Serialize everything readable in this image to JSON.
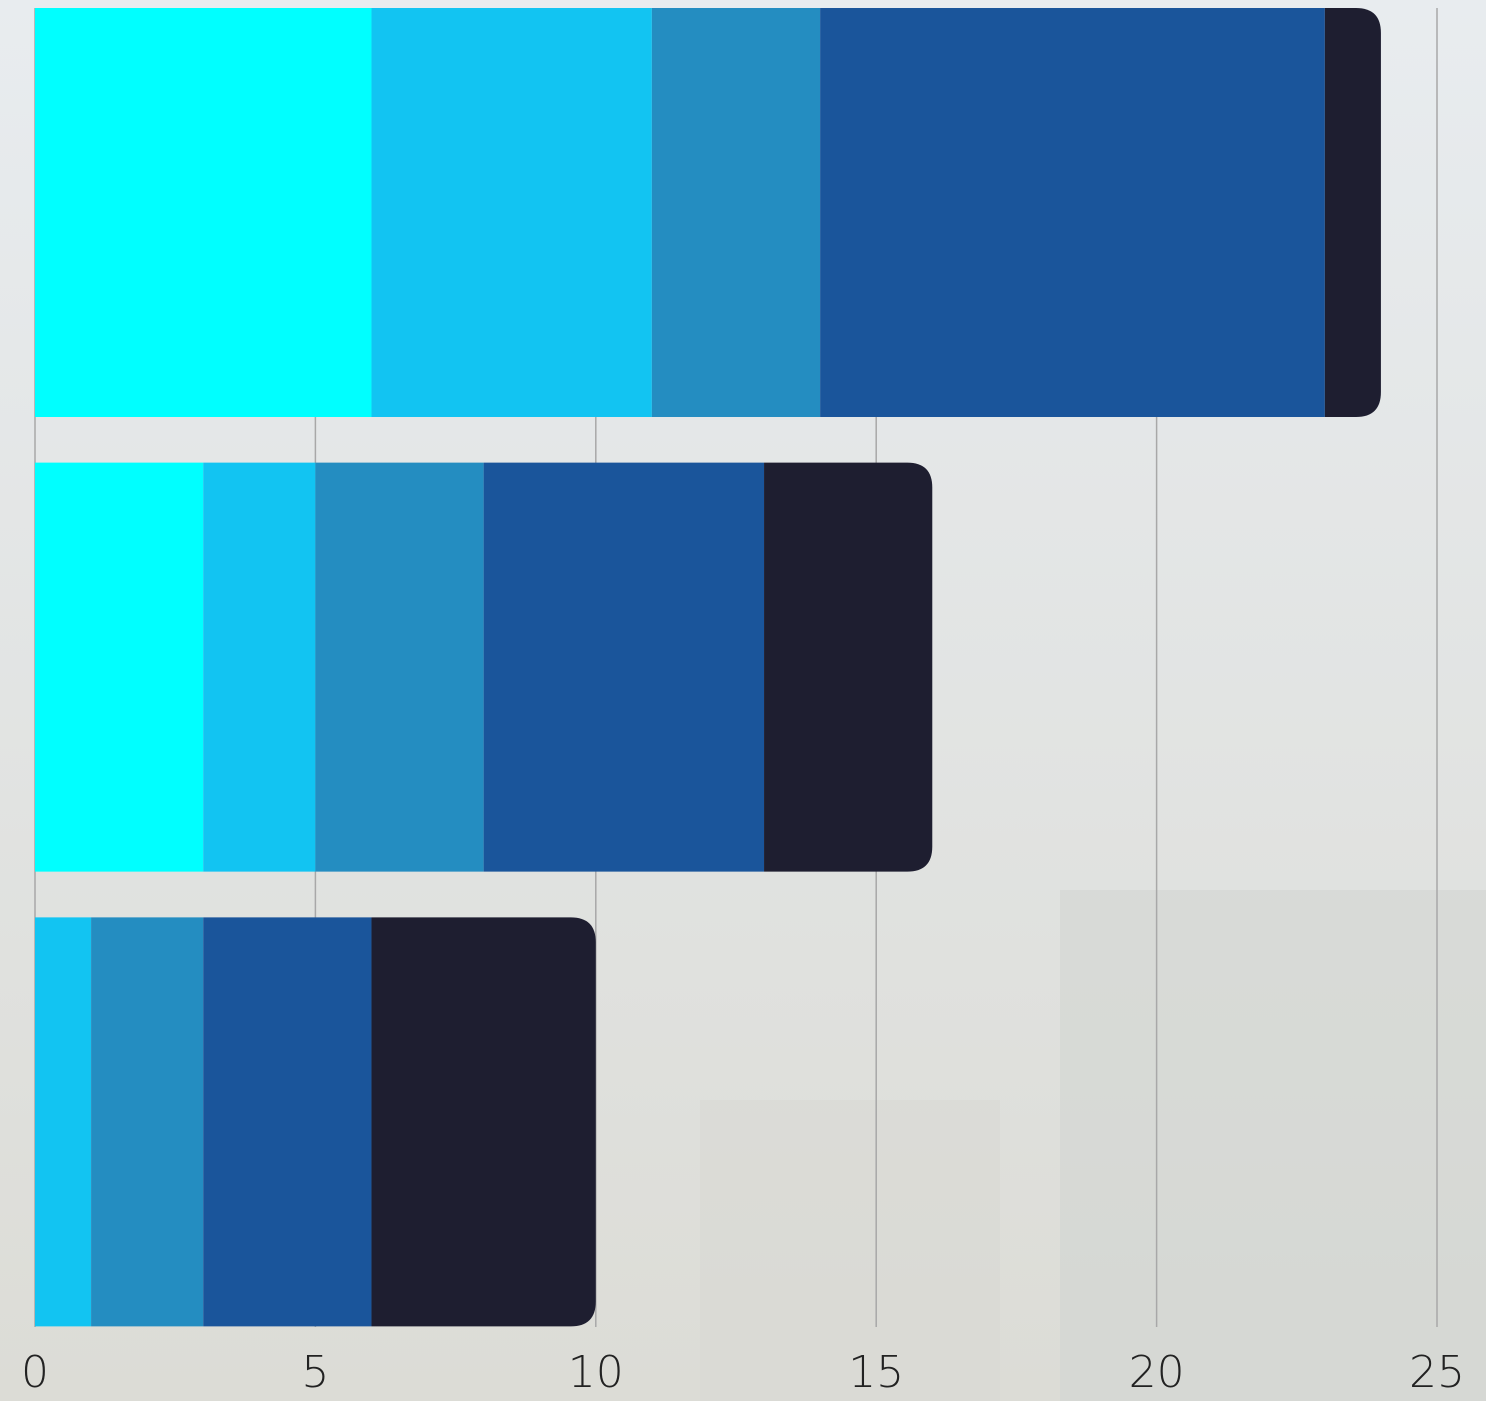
{
  "chart_data": {
    "type": "stacked-bar-horizontal",
    "categories": [
      null,
      null,
      null
    ],
    "series": [
      {
        "color": "#00ffff",
        "values": [
          6,
          3,
          0
        ]
      },
      {
        "color": "#12c4f2",
        "values": [
          5,
          2,
          1
        ]
      },
      {
        "color": "#248dc1",
        "values": [
          3,
          3,
          2
        ]
      },
      {
        "color": "#1a559b",
        "values": [
          9,
          5,
          3
        ]
      },
      {
        "color": "#1e1e30",
        "values": [
          1,
          3,
          4
        ]
      }
    ],
    "xlim": [
      0,
      25
    ],
    "xticks": [
      0,
      5,
      10,
      15,
      20,
      25
    ],
    "grid": true
  }
}
